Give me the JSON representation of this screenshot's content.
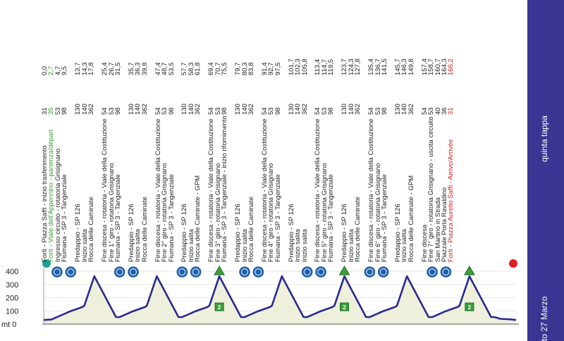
{
  "chart_data": {
    "type": "area",
    "title": "",
    "ylabel": "mt",
    "y_ticks": [
      "400",
      "300",
      "200",
      "100",
      "mt 0"
    ],
    "ylim": [
      0,
      450
    ],
    "xlim": [
      0,
      166.2
    ],
    "profile": [
      [
        0,
        31
      ],
      [
        2.7,
        35
      ],
      [
        4.7,
        53
      ],
      [
        9.5,
        98
      ],
      [
        13.7,
        130
      ],
      [
        14.3,
        140
      ],
      [
        17.8,
        362
      ],
      [
        25.4,
        54
      ],
      [
        26.7,
        53
      ],
      [
        31.5,
        98
      ],
      [
        35.7,
        130
      ],
      [
        36.3,
        140
      ],
      [
        39.8,
        362
      ],
      [
        47.4,
        54
      ],
      [
        48.7,
        53
      ],
      [
        53.5,
        98
      ],
      [
        57.7,
        130
      ],
      [
        58.3,
        140
      ],
      [
        61.8,
        362
      ],
      [
        69.4,
        54
      ],
      [
        70.7,
        53
      ],
      [
        75.5,
        98
      ],
      [
        79.7,
        130
      ],
      [
        80.3,
        140
      ],
      [
        83.8,
        362
      ],
      [
        91.4,
        54
      ],
      [
        92.7,
        53
      ],
      [
        97.5,
        98
      ],
      [
        101.7,
        130
      ],
      [
        102.3,
        140
      ],
      [
        105.8,
        362
      ],
      [
        113.4,
        54
      ],
      [
        114.7,
        53
      ],
      [
        119.5,
        98
      ],
      [
        123.7,
        130
      ],
      [
        124.3,
        140
      ],
      [
        127.8,
        362
      ],
      [
        135.4,
        54
      ],
      [
        136.7,
        53
      ],
      [
        141.5,
        98
      ],
      [
        145.7,
        130
      ],
      [
        146.3,
        140
      ],
      [
        149.8,
        362
      ],
      [
        157.4,
        54
      ],
      [
        158.7,
        53
      ],
      [
        160.7,
        40
      ],
      [
        164.3,
        36
      ],
      [
        166.2,
        31
      ]
    ],
    "sprint_markers_km": [
      [
        4.7,
        9.5
      ],
      [
        26.7,
        31.5
      ],
      [
        48.7,
        53.5
      ],
      [
        70.7,
        75.5
      ],
      [
        92.7,
        97.5
      ],
      [
        114.7,
        119.5
      ],
      [
        136.7,
        141.5
      ]
    ],
    "gpm_markers_km": [
      61.8,
      105.8,
      149.8
    ],
    "gpm_badge_label": "2",
    "start_km": 0,
    "finish_km": 166.2
  },
  "route": [
    {
      "km": "0,0",
      "alt": "31",
      "desc": "Forlì - Piazza Saffi - inizio trasferimento",
      "style": ""
    },
    {
      "km": "2,7",
      "alt": "35",
      "desc": "Forlì - Viale dell'Appennino - partenza/départ",
      "style": "green"
    },
    {
      "km": "4,7",
      "alt": "53",
      "desc": "Ingresso circuito - rotatoria Grisignano",
      "style": ""
    },
    {
      "km": "9,5",
      "alt": "98",
      "desc": "Fiumana - SP 3 - Tangenziale",
      "style": ""
    },
    {
      "km": "",
      "alt": "",
      "desc": "",
      "style": ""
    },
    {
      "km": "13,7",
      "alt": "130",
      "desc": "Predappio - SP 126",
      "style": ""
    },
    {
      "km": "14,3",
      "alt": "140",
      "desc": "Inizio salita",
      "style": ""
    },
    {
      "km": "17,8",
      "alt": "362",
      "desc": "Rocca delle Caminate",
      "style": ""
    },
    {
      "km": "",
      "alt": "",
      "desc": "",
      "style": ""
    },
    {
      "km": "25,4",
      "alt": "54",
      "desc": "Fine discesa - rotatoria - Viale della Costituzione",
      "style": ""
    },
    {
      "km": "26,7",
      "alt": "53",
      "desc": "Fine 1° giro - rotatoria Grisignano",
      "style": ""
    },
    {
      "km": "31,5",
      "alt": "98",
      "desc": "Fiumana - SP 3 - Tangenziale",
      "style": ""
    },
    {
      "km": "",
      "alt": "",
      "desc": "",
      "style": ""
    },
    {
      "km": "35,7",
      "alt": "130",
      "desc": "Predappio - SP 126",
      "style": ""
    },
    {
      "km": "36,3",
      "alt": "140",
      "desc": "Inizio salita",
      "style": ""
    },
    {
      "km": "39,8",
      "alt": "362",
      "desc": "Rocca delle Caminate",
      "style": ""
    },
    {
      "km": "",
      "alt": "",
      "desc": "",
      "style": ""
    },
    {
      "km": "47,4",
      "alt": "54",
      "desc": "Fine discesa - rotatoria - Viale della Costituzione",
      "style": ""
    },
    {
      "km": "48,7",
      "alt": "53",
      "desc": "Fine 2° giro - rotatoria Grisignano",
      "style": ""
    },
    {
      "km": "53,5",
      "alt": "98",
      "desc": "Fiumana - SP 3 - Tangenziale",
      "style": ""
    },
    {
      "km": "",
      "alt": "",
      "desc": "",
      "style": ""
    },
    {
      "km": "57,7",
      "alt": "130",
      "desc": "Predappio - SP 126",
      "style": ""
    },
    {
      "km": "58,3",
      "alt": "140",
      "desc": "Inizio salita",
      "style": ""
    },
    {
      "km": "61,8",
      "alt": "362",
      "desc": "Rocca delle Caminate - GPM",
      "style": ""
    },
    {
      "km": "",
      "alt": "",
      "desc": "",
      "style": ""
    },
    {
      "km": "69,4",
      "alt": "54",
      "desc": "Fine discesa - rotatoria - Viale della Costituzione",
      "style": ""
    },
    {
      "km": "70,7",
      "alt": "53",
      "desc": "Fine 3° giro - rotatoria Grisignano",
      "style": ""
    },
    {
      "km": "75,5",
      "alt": "98",
      "desc": "Fiumana - SP 3 - Tangenziale - inizio rifornimento",
      "style": ""
    },
    {
      "km": "",
      "alt": "",
      "desc": "",
      "style": ""
    },
    {
      "km": "79,7",
      "alt": "130",
      "desc": "Predappio - SP 126",
      "style": ""
    },
    {
      "km": "80,3",
      "alt": "140",
      "desc": "Inizio salita",
      "style": ""
    },
    {
      "km": "83,8",
      "alt": "362",
      "desc": "Rocca delle Caminate",
      "style": ""
    },
    {
      "km": "",
      "alt": "",
      "desc": "",
      "style": ""
    },
    {
      "km": "91,4",
      "alt": "54",
      "desc": "Fine discesa - rotatoria - Viale della Costituzione",
      "style": ""
    },
    {
      "km": "92,7",
      "alt": "53",
      "desc": "Fine 4° giro - rotatoria Grisignano",
      "style": ""
    },
    {
      "km": "97,5",
      "alt": "98",
      "desc": "Fiumana - SP 3 - Tangenziale",
      "style": ""
    },
    {
      "km": "",
      "alt": "",
      "desc": "",
      "style": ""
    },
    {
      "km": "101,7",
      "alt": "130",
      "desc": "Predappio - SP 126",
      "style": ""
    },
    {
      "km": "102,3",
      "alt": "140",
      "desc": "Inizio salita",
      "style": ""
    },
    {
      "km": "105,8",
      "alt": "362",
      "desc": "Inizio salita",
      "style": ""
    },
    {
      "km": "",
      "alt": "",
      "desc": "",
      "style": ""
    },
    {
      "km": "113,4",
      "alt": "54",
      "desc": "Fine discesa - rotatoria - Viale della Costituzione",
      "style": ""
    },
    {
      "km": "114,7",
      "alt": "53",
      "desc": "Fine 5° giro - rotatoria Grisignano",
      "style": ""
    },
    {
      "km": "119,5",
      "alt": "98",
      "desc": "Fiumana - SP 3 - Tangenziale",
      "style": ""
    },
    {
      "km": "",
      "alt": "",
      "desc": "",
      "style": ""
    },
    {
      "km": "123,7",
      "alt": "130",
      "desc": "Predappio - SP 126",
      "style": ""
    },
    {
      "km": "124,3",
      "alt": "140",
      "desc": "Inizio salita",
      "style": ""
    },
    {
      "km": "127,8",
      "alt": "362",
      "desc": "Rocca delle Caminate",
      "style": ""
    },
    {
      "km": "",
      "alt": "",
      "desc": "",
      "style": ""
    },
    {
      "km": "135,4",
      "alt": "54",
      "desc": "Fine discesa - rotatoria - Viale della Costituzione",
      "style": ""
    },
    {
      "km": "136,7",
      "alt": "53",
      "desc": "Fine 6° giro - rotatoria Grisignano",
      "style": ""
    },
    {
      "km": "141,5",
      "alt": "98",
      "desc": "Fiumana - SP 3 - Tangenziale",
      "style": ""
    },
    {
      "km": "",
      "alt": "",
      "desc": "",
      "style": ""
    },
    {
      "km": "145,7",
      "alt": "130",
      "desc": "Predappio - SP 126",
      "style": ""
    },
    {
      "km": "146,3",
      "alt": "140",
      "desc": "Inizio salita",
      "style": ""
    },
    {
      "km": "149,8",
      "alt": "362",
      "desc": "Rocca delle Caminate - GPM",
      "style": ""
    },
    {
      "km": "",
      "alt": "",
      "desc": "",
      "style": ""
    },
    {
      "km": "157,4",
      "alt": "54",
      "desc": "Fine discesa",
      "style": ""
    },
    {
      "km": "158,7",
      "alt": "53",
      "desc": "Fine 7° giro - rotatoria Grisignano - uscita circuito",
      "style": ""
    },
    {
      "km": "160,7",
      "alt": "40",
      "desc": "San Martino in Strada",
      "style": ""
    },
    {
      "km": "164,3",
      "alt": "36",
      "desc": "Piazzale Porta Ravaldino",
      "style": ""
    },
    {
      "km": "166,2",
      "alt": "31",
      "desc": "Forlì - Piazza Aurelio Saffi - Arrivo/Arrivée",
      "style": "red"
    }
  ],
  "band": {
    "stage_label": "quinta tappa",
    "date_label": "to 27 Marzo"
  },
  "colors": {
    "profile_line": "#2b2a8f",
    "profile_fill": "#eef0dc",
    "band_bg": "#3a3593",
    "sprint_icon": "#1f5fa8",
    "gpm_icon": "#3aa03a",
    "start_dot": "#1aa38f",
    "finish_dot": "#e02020"
  }
}
